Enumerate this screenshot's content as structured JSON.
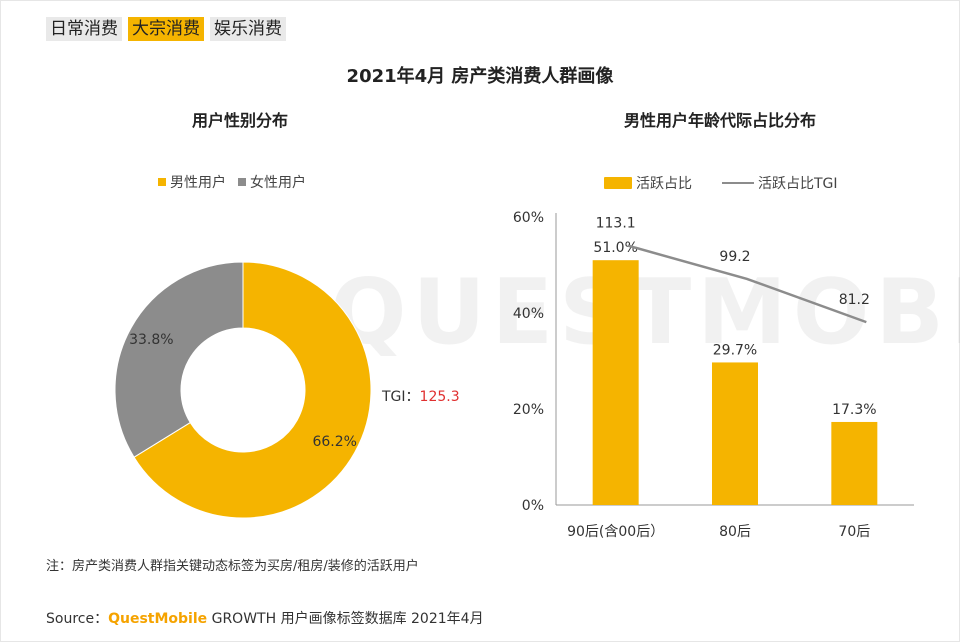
{
  "tabs": [
    {
      "label": "日常消费",
      "active": false
    },
    {
      "label": "大宗消费",
      "active": true
    },
    {
      "label": "娱乐消费",
      "active": false
    }
  ],
  "title": "2021年4月 房产类消费人群画像",
  "watermark": "QUESTMOBILE",
  "colors": {
    "yellow": "#F5B400",
    "gray": "#8C8C8C",
    "line": "#8C8C8C",
    "tgi_red": "#E03030"
  },
  "chart_data": [
    {
      "type": "pie",
      "subtype": "donut",
      "title": "用户性别分布",
      "legend": [
        {
          "name": "男性用户",
          "color": "#F5B400"
        },
        {
          "name": "女性用户",
          "color": "#8C8C8C"
        }
      ],
      "slices": [
        {
          "name": "男性用户",
          "value": 66.2,
          "label": "66.2%"
        },
        {
          "name": "女性用户",
          "value": 33.8,
          "label": "33.8%"
        }
      ],
      "tgi_label": "TGI：",
      "tgi_value": "125.3"
    },
    {
      "type": "bar",
      "title": "男性用户年龄代际占比分布",
      "categories": [
        "90后(含00后）",
        "80后",
        "70后"
      ],
      "series": [
        {
          "name": "活跃占比",
          "kind": "bar",
          "values": [
            51.0,
            29.7,
            17.3
          ],
          "labels": [
            "51.0%",
            "29.7%",
            "17.3%"
          ]
        },
        {
          "name": "活跃占比TGI",
          "kind": "line",
          "values": [
            113.1,
            99.2,
            81.2
          ],
          "labels": [
            "113.1",
            "99.2",
            "81.2"
          ]
        }
      ],
      "yticks": [
        "0%",
        "20%",
        "40%",
        "60%"
      ],
      "ylim": [
        0,
        60
      ],
      "line_range": [
        0,
        120
      ]
    }
  ],
  "note": "注：房产类消费人群指关键动态标签为买房/租房/装修的活跃用户",
  "source": {
    "prefix": "Source：",
    "brand": "QuestMobile",
    "text": "GROWTH 用户画像标签数据库 2021年4月"
  }
}
